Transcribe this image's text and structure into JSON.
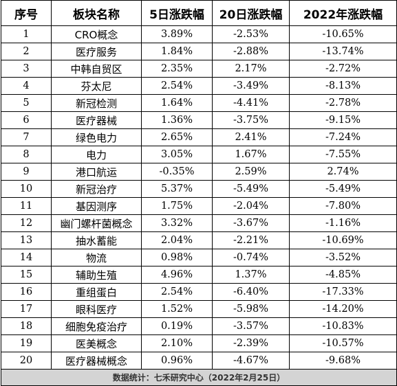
{
  "table": {
    "headers": [
      "序号",
      "板块名称",
      "5日涨跌幅",
      "20日涨跌幅",
      "2022年涨跌幅"
    ],
    "rows": [
      [
        "1",
        "CRO概念",
        "3.89%",
        "-2.53%",
        "-10.65%"
      ],
      [
        "2",
        "医疗服务",
        "1.84%",
        "-2.88%",
        "-13.74%"
      ],
      [
        "3",
        "中韩自贸区",
        "2.35%",
        "2.17%",
        "-2.72%"
      ],
      [
        "4",
        "芬太尼",
        "2.54%",
        "-3.49%",
        "-8.13%"
      ],
      [
        "5",
        "新冠检测",
        "1.64%",
        "-4.41%",
        "-2.78%"
      ],
      [
        "6",
        "医疗器械",
        "1.36%",
        "-3.75%",
        "-9.15%"
      ],
      [
        "7",
        "绿色电力",
        "2.65%",
        "2.41%",
        "-7.24%"
      ],
      [
        "8",
        "电力",
        "3.05%",
        "1.67%",
        "-7.55%"
      ],
      [
        "9",
        "港口航运",
        "-0.35%",
        "2.59%",
        "2.74%"
      ],
      [
        "10",
        "新冠治疗",
        "5.37%",
        "-5.49%",
        "-5.49%"
      ],
      [
        "11",
        "基因测序",
        "1.75%",
        "-2.04%",
        "-7.80%"
      ],
      [
        "12",
        "幽门螺杆菌概念",
        "3.32%",
        "-3.67%",
        "-1.16%"
      ],
      [
        "13",
        "抽水蓄能",
        "2.04%",
        "-2.21%",
        "-10.69%"
      ],
      [
        "14",
        "物流",
        "0.98%",
        "-0.74%",
        "-3.52%"
      ],
      [
        "15",
        "辅助生殖",
        "4.96%",
        "1.37%",
        "-4.85%"
      ],
      [
        "16",
        "重组蛋白",
        "2.54%",
        "-6.40%",
        "-17.33%"
      ],
      [
        "17",
        "眼科医疗",
        "1.52%",
        "-5.98%",
        "-14.20%"
      ],
      [
        "18",
        "细胞免疫治疗",
        "0.19%",
        "-3.57%",
        "-10.83%"
      ],
      [
        "19",
        "医美概念",
        "2.10%",
        "-2.39%",
        "-10.57%"
      ],
      [
        "20",
        "医疗器械概念",
        "0.96%",
        "-4.67%",
        "-9.68%"
      ]
    ],
    "footer": "数据统计：七禾研究中心（2022年2月25日）"
  }
}
